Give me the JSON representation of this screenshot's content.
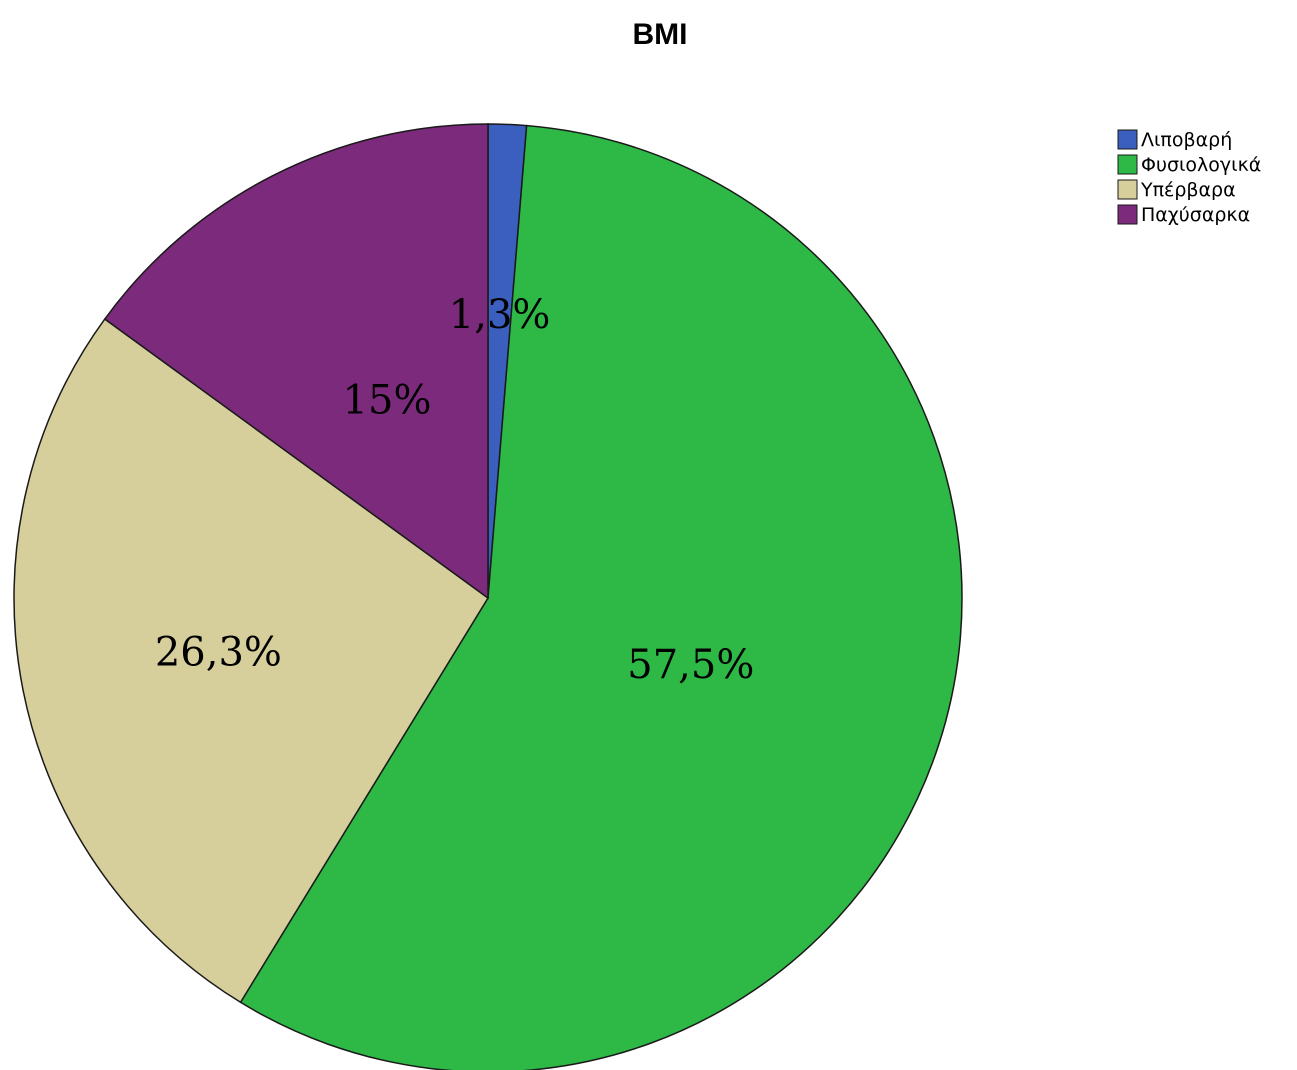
{
  "chart_data": {
    "type": "pie",
    "title": "BMI",
    "slices": [
      {
        "label": "Λιποβαρή",
        "value": 1.3,
        "display": "1,3%",
        "color": "#3a5fbf"
      },
      {
        "label": "Φυσιολογικά",
        "value": 57.5,
        "display": "57,5%",
        "color": "#2eb846"
      },
      {
        "label": "Υπέρβαρα",
        "value": 26.3,
        "display": "26,3%",
        "color": "#d6cf9b"
      },
      {
        "label": "Παχύσαρκα",
        "value": 15.0,
        "display": "15%",
        "color": "#7c2a7c"
      }
    ],
    "legend_position": "top-right",
    "start_angle": "12 o'clock",
    "direction": "clockwise"
  }
}
